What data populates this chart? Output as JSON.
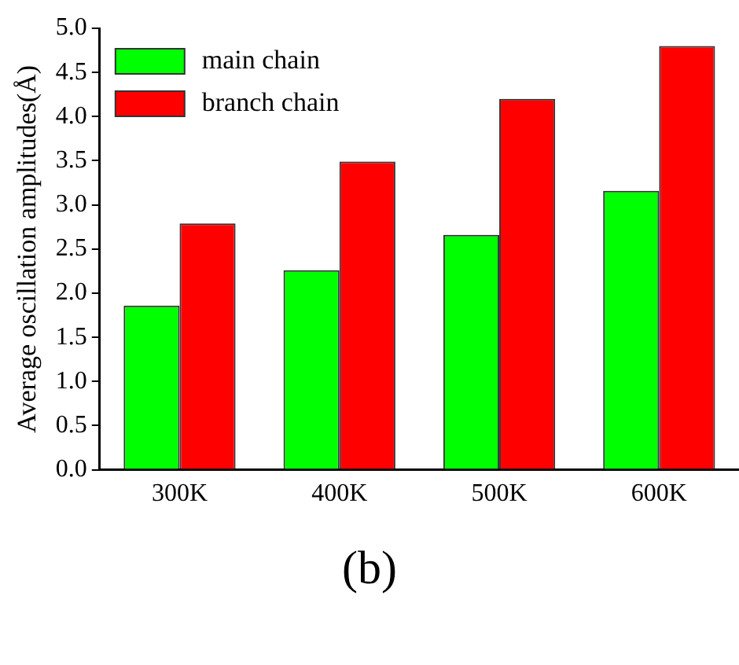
{
  "chart_data": {
    "type": "bar",
    "ylabel": "Average oscillation amplitudes(Å)",
    "categories": [
      "300K",
      "400K",
      "500K",
      "600K"
    ],
    "series": [
      {
        "name": "main chain",
        "color": "#00ff00",
        "values": [
          1.86,
          2.26,
          2.66,
          3.16
        ]
      },
      {
        "name": "branch chain",
        "color": "#ff0000",
        "values": [
          2.79,
          3.49,
          4.2,
          4.8
        ]
      }
    ],
    "ylim": [
      0,
      5
    ],
    "yticks": [
      {
        "value": 0,
        "label": "0.0"
      },
      {
        "value": 0.5,
        "label": "0.5"
      },
      {
        "value": 1,
        "label": "1.0"
      },
      {
        "value": 1.5,
        "label": "1.5"
      },
      {
        "value": 2,
        "label": "2.0"
      },
      {
        "value": 2.5,
        "label": "2.5"
      },
      {
        "value": 3,
        "label": "3.0"
      },
      {
        "value": 3.5,
        "label": "3.5"
      },
      {
        "value": 4,
        "label": "4.0"
      },
      {
        "value": 4.5,
        "label": "4.5"
      },
      {
        "value": 5,
        "label": "5.0"
      }
    ],
    "grid": false,
    "legend": "top left",
    "annotations": [
      "(b)"
    ]
  }
}
